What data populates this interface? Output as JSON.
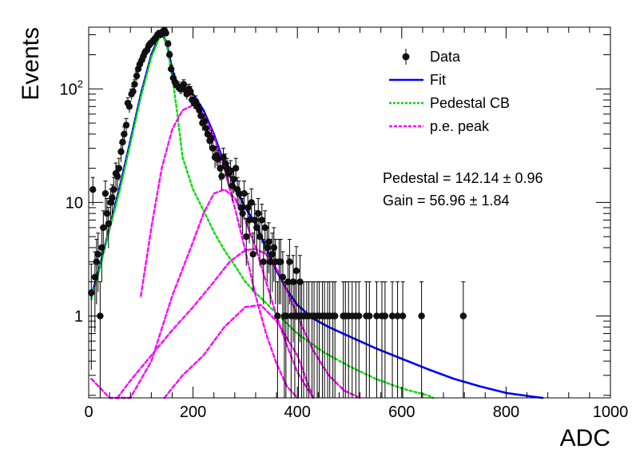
{
  "chart_data": {
    "type": "scatter",
    "title": "",
    "xlabel": "ADC",
    "ylabel": "Events",
    "xlim": [
      0,
      1000
    ],
    "ylim": [
      0.19,
      350
    ],
    "log_y": true,
    "grid": false,
    "legend_position": "top-right",
    "x_ticks": [
      "0",
      "200",
      "400",
      "600",
      "800",
      "1000"
    ],
    "y_ticks": [
      {
        "value": 1,
        "label": "1",
        "exp": ""
      },
      {
        "value": 10,
        "label": "10",
        "exp": ""
      },
      {
        "value": 100,
        "label": "10",
        "exp": "2"
      }
    ],
    "legend": [
      {
        "label": "Data",
        "style": "marker"
      },
      {
        "label": "Fit",
        "style": "solid",
        "color": "#0000ff"
      },
      {
        "label": "Pedestal CB",
        "style": "dotted",
        "color": "#00dd00"
      },
      {
        "label": "p.e. peak",
        "style": "dashed",
        "color": "#ff00ff"
      }
    ],
    "annotations": [
      {
        "label": "Pedestal = 142.14",
        "pm": "±",
        "value": "0.96"
      },
      {
        "label": "Gain = 56.96",
        "pm": "±",
        "value": "1.84"
      }
    ],
    "colors": {
      "data": "#111111",
      "fit": "#0000ff",
      "pedestal": "#00dd00",
      "pe": "#ff00ff"
    },
    "series": [
      {
        "name": "Data",
        "kind": "points_with_errors",
        "points": [
          [
            5,
            1.6
          ],
          [
            8,
            13
          ],
          [
            12,
            2.2
          ],
          [
            15,
            3
          ],
          [
            18,
            3.5
          ],
          [
            22,
            1
          ],
          [
            25,
            4
          ],
          [
            28,
            6
          ],
          [
            32,
            12
          ],
          [
            35,
            8
          ],
          [
            38,
            6.5
          ],
          [
            42,
            10
          ],
          [
            45,
            11
          ],
          [
            48,
            13
          ],
          [
            52,
            18
          ],
          [
            55,
            17
          ],
          [
            58,
            20
          ],
          [
            62,
            28
          ],
          [
            65,
            34
          ],
          [
            68,
            40
          ],
          [
            72,
            48
          ],
          [
            75,
            75
          ],
          [
            78,
            70
          ],
          [
            82,
            90
          ],
          [
            85,
            95
          ],
          [
            88,
            110
          ],
          [
            92,
            130
          ],
          [
            95,
            150
          ],
          [
            98,
            165
          ],
          [
            102,
            180
          ],
          [
            105,
            195
          ],
          [
            108,
            210
          ],
          [
            112,
            220
          ],
          [
            115,
            240
          ],
          [
            118,
            250
          ],
          [
            122,
            260
          ],
          [
            125,
            270
          ],
          [
            128,
            280
          ],
          [
            132,
            300
          ],
          [
            135,
            310
          ],
          [
            138,
            300
          ],
          [
            142,
            320
          ],
          [
            145,
            330
          ],
          [
            148,
            310
          ],
          [
            152,
            250
          ],
          [
            155,
            200
          ],
          [
            158,
            150
          ],
          [
            162,
            125
          ],
          [
            165,
            115
          ],
          [
            168,
            108
          ],
          [
            172,
            105
          ],
          [
            175,
            100
          ],
          [
            178,
            100
          ],
          [
            182,
            110
          ],
          [
            185,
            98
          ],
          [
            188,
            90
          ],
          [
            192,
            100
          ],
          [
            195,
            95
          ],
          [
            198,
            80
          ],
          [
            202,
            75
          ],
          [
            205,
            78
          ],
          [
            208,
            70
          ],
          [
            212,
            65
          ],
          [
            215,
            58
          ],
          [
            218,
            50
          ],
          [
            222,
            52
          ],
          [
            225,
            45
          ],
          [
            228,
            40
          ],
          [
            232,
            35
          ],
          [
            235,
            37
          ],
          [
            238,
            30
          ],
          [
            242,
            25
          ],
          [
            245,
            26
          ],
          [
            248,
            24
          ],
          [
            252,
            20
          ],
          [
            255,
            17
          ],
          [
            258,
            25
          ],
          [
            262,
            22
          ],
          [
            265,
            20
          ],
          [
            268,
            18
          ],
          [
            272,
            19
          ],
          [
            275,
            14
          ],
          [
            278,
            16
          ],
          [
            282,
            20
          ],
          [
            285,
            13
          ],
          [
            288,
            12
          ],
          [
            292,
            9
          ],
          [
            295,
            8
          ],
          [
            298,
            12
          ],
          [
            302,
            5
          ],
          [
            305,
            9
          ],
          [
            308,
            7
          ],
          [
            312,
            10
          ],
          [
            315,
            3.5
          ],
          [
            318,
            7
          ],
          [
            322,
            6
          ],
          [
            325,
            8
          ],
          [
            328,
            5
          ],
          [
            332,
            7
          ],
          [
            335,
            3
          ],
          [
            338,
            6
          ],
          [
            342,
            4
          ],
          [
            345,
            4.5
          ],
          [
            348,
            3
          ],
          [
            352,
            3.5
          ],
          [
            355,
            4
          ],
          [
            358,
            3
          ],
          [
            362,
            1
          ],
          [
            365,
            3
          ],
          [
            368,
            3
          ],
          [
            372,
            2.2
          ],
          [
            375,
            1
          ],
          [
            378,
            1
          ],
          [
            382,
            2
          ],
          [
            385,
            3
          ],
          [
            388,
            1
          ],
          [
            392,
            2
          ],
          [
            395,
            1
          ],
          [
            398,
            2.5
          ],
          [
            402,
            1
          ],
          [
            405,
            2
          ],
          [
            408,
            1
          ],
          [
            412,
            1
          ],
          [
            418,
            1
          ],
          [
            422,
            1
          ],
          [
            428,
            1
          ],
          [
            432,
            1
          ],
          [
            438,
            1
          ],
          [
            442,
            1
          ],
          [
            448,
            1
          ],
          [
            452,
            1
          ],
          [
            458,
            1
          ],
          [
            462,
            1
          ],
          [
            468,
            1
          ],
          [
            472,
            1
          ],
          [
            488,
            1
          ],
          [
            492,
            1
          ],
          [
            498,
            1
          ],
          [
            505,
            1
          ],
          [
            512,
            1
          ],
          [
            518,
            1
          ],
          [
            532,
            1
          ],
          [
            538,
            1
          ],
          [
            552,
            1
          ],
          [
            562,
            1
          ],
          [
            568,
            1
          ],
          [
            582,
            1
          ],
          [
            592,
            1
          ],
          [
            602,
            1
          ],
          [
            638,
            1
          ],
          [
            718,
            1
          ]
        ]
      },
      {
        "name": "Fit",
        "kind": "line",
        "x": [
          5,
          20,
          40,
          60,
          80,
          100,
          120,
          135,
          142,
          150,
          160,
          170,
          180,
          200,
          220,
          240,
          260,
          280,
          300,
          320,
          340,
          360,
          380,
          400,
          430,
          460,
          500,
          550,
          600,
          650,
          700,
          750,
          800,
          850,
          870
        ],
        "y": [
          1.5,
          2.6,
          6,
          14,
          35,
          90,
          200,
          290,
          300,
          250,
          150,
          110,
          100,
          90,
          65,
          40,
          22,
          14,
          9,
          6.5,
          4,
          2.5,
          1.7,
          1.25,
          0.95,
          0.8,
          0.66,
          0.52,
          0.42,
          0.34,
          0.28,
          0.24,
          0.21,
          0.195,
          0.19
        ]
      },
      {
        "name": "Pedestal CB",
        "kind": "line",
        "x": [
          5,
          20,
          40,
          60,
          80,
          100,
          120,
          135,
          142,
          150,
          160,
          170,
          180,
          200,
          220,
          240,
          260,
          280,
          300,
          320,
          340,
          360,
          400,
          450,
          500,
          550,
          600,
          650,
          660
        ],
        "y": [
          1.4,
          2.5,
          5.8,
          13,
          33,
          85,
          190,
          280,
          295,
          240,
          130,
          60,
          25,
          13,
          8.5,
          5.5,
          3.8,
          2.8,
          2,
          1.6,
          1.3,
          1.05,
          0.7,
          0.48,
          0.36,
          0.28,
          0.23,
          0.2,
          0.19
        ]
      },
      {
        "name": "p.e. peak",
        "kind": "line",
        "x": [
          100,
          120,
          140,
          160,
          180,
          200,
          220,
          240,
          260,
          280,
          300,
          320,
          340,
          360,
          380,
          400
        ],
        "y": [
          1.5,
          6,
          20,
          44,
          65,
          72,
          60,
          38,
          20,
          9,
          3.8,
          1.5,
          0.7,
          0.38,
          0.24,
          0.19
        ]
      },
      {
        "name": "p.e. peak",
        "kind": "line",
        "x": [
          5,
          40,
          80,
          120,
          160,
          200,
          220,
          240,
          260,
          280,
          300,
          320,
          340,
          360,
          380,
          400,
          430
        ],
        "y": [
          0.28,
          0.19,
          0.19,
          0.4,
          1.5,
          4.5,
          8,
          12,
          13,
          11,
          7,
          4,
          2,
          1,
          0.55,
          0.32,
          0.19
        ]
      },
      {
        "name": "p.e. peak",
        "kind": "line",
        "x": [
          55,
          80,
          120,
          160,
          200,
          240,
          270,
          300,
          320,
          340,
          360,
          380,
          400,
          430,
          460,
          490,
          520
        ],
        "y": [
          0.19,
          0.27,
          0.45,
          0.75,
          1.2,
          2,
          3,
          3.8,
          3.9,
          3.5,
          2.6,
          1.7,
          1,
          0.5,
          0.3,
          0.22,
          0.19
        ]
      },
      {
        "name": "p.e. peak",
        "kind": "line",
        "x": [
          145,
          180,
          220,
          260,
          300,
          330,
          360,
          400,
          430
        ],
        "y": [
          0.19,
          0.3,
          0.45,
          0.8,
          1.2,
          1.25,
          0.9,
          0.45,
          0.19
        ]
      }
    ]
  }
}
